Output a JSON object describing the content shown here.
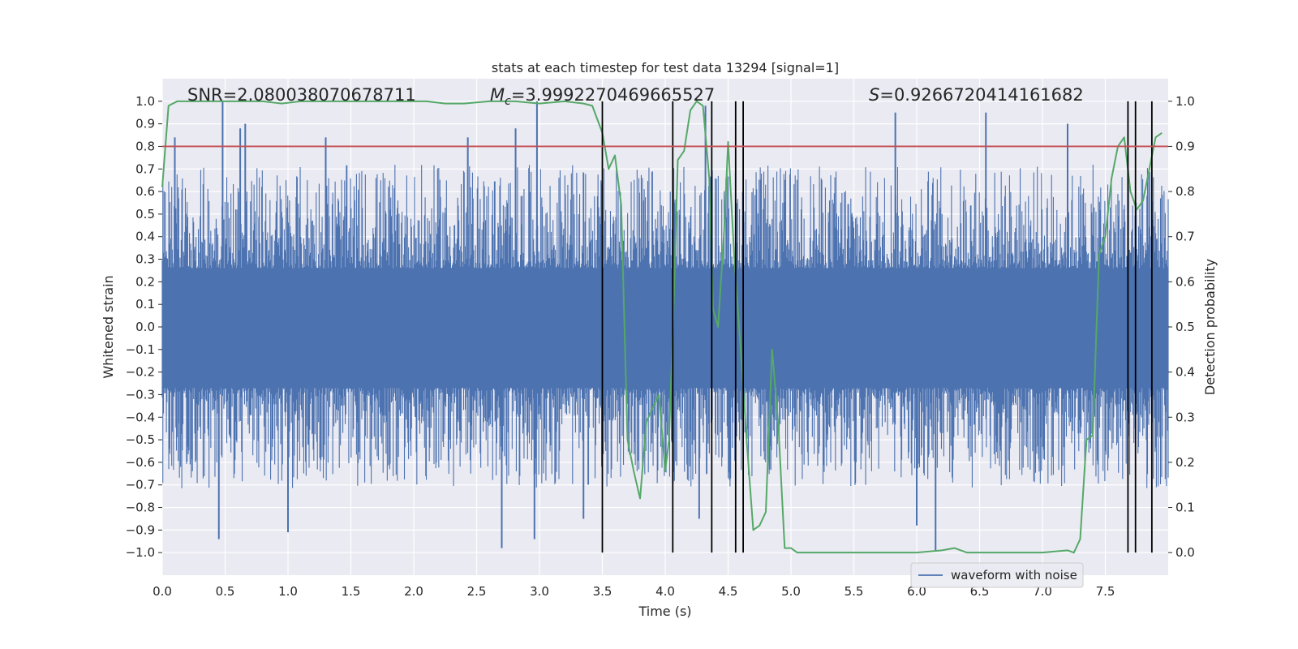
{
  "chart_data": {
    "type": "line",
    "title": "stats at each timestep for test data 13294 [signal=1]",
    "xlabel": "Time (s)",
    "ylabel": "Whitened strain",
    "y2label": "Detection probability",
    "xlim": [
      0.0,
      8.0
    ],
    "ylim": [
      -1.1,
      1.1
    ],
    "y2lim": [
      -0.05,
      1.05
    ],
    "xticks": [
      "0.0",
      "0.5",
      "1.0",
      "1.5",
      "2.0",
      "2.5",
      "3.0",
      "3.5",
      "4.0",
      "4.5",
      "5.0",
      "5.5",
      "6.0",
      "6.5",
      "7.0",
      "7.5"
    ],
    "yticks": [
      "1.0",
      "0.9",
      "0.8",
      "0.7",
      "0.6",
      "0.5",
      "0.4",
      "0.3",
      "0.2",
      "0.1",
      "0.0",
      "−0.1",
      "−0.2",
      "−0.3",
      "−0.4",
      "−0.5",
      "−0.6",
      "−0.7",
      "−0.8",
      "−0.9",
      "−1.0"
    ],
    "y2ticks": [
      "1.0",
      "0.9",
      "0.8",
      "0.7",
      "0.6",
      "0.5",
      "0.4",
      "0.3",
      "0.2",
      "0.1",
      "0.0"
    ],
    "annotations": {
      "snr": "SNR=2.080038070678711",
      "mc_symbol": "M",
      "mc_sub": "c",
      "mc_value": "=3.9992270469665527",
      "s_symbol": "S",
      "s_value": "=0.9266720414161682"
    },
    "threshold": {
      "axis": "right",
      "value": 0.9,
      "color": "#c44e52"
    },
    "vertical_lines": [
      3.5,
      4.06,
      4.37,
      4.56,
      4.62,
      7.68,
      7.74,
      7.87
    ],
    "series": [
      {
        "name": "waveform with noise",
        "axis": "left",
        "color": "#4c72b0",
        "x_range": [
          0.0,
          8.0
        ],
        "core_band": [
          -0.27,
          0.26
        ],
        "typical_max": 0.6,
        "typical_min": -0.6,
        "peaks": [
          {
            "x": 0.48,
            "y": 1.0
          },
          {
            "x": 0.62,
            "y": 0.88
          },
          {
            "x": 0.66,
            "y": 0.9
          },
          {
            "x": 2.98,
            "y": 1.0
          },
          {
            "x": 4.32,
            "y": 0.98
          },
          {
            "x": 0.1,
            "y": 0.84
          },
          {
            "x": 1.3,
            "y": 0.84
          },
          {
            "x": 2.43,
            "y": 0.84
          },
          {
            "x": 2.81,
            "y": 0.88
          },
          {
            "x": 5.83,
            "y": 0.95
          },
          {
            "x": 6.55,
            "y": 0.95
          },
          {
            "x": 7.2,
            "y": 0.9
          }
        ],
        "troughs": [
          {
            "x": 0.45,
            "y": -0.94
          },
          {
            "x": 2.7,
            "y": -0.98
          },
          {
            "x": 2.96,
            "y": -0.94
          },
          {
            "x": 1.0,
            "y": -0.91
          },
          {
            "x": 6.15,
            "y": -0.99
          },
          {
            "x": 6.0,
            "y": -0.88
          },
          {
            "x": 3.35,
            "y": -0.85
          },
          {
            "x": 4.27,
            "y": -0.85
          }
        ]
      },
      {
        "name": "detection probability",
        "axis": "right",
        "color": "#55a868",
        "x": [
          0.0,
          0.05,
          0.12,
          0.2,
          0.4,
          0.6,
          0.8,
          0.95,
          1.1,
          1.3,
          1.5,
          1.7,
          1.9,
          2.1,
          2.25,
          2.4,
          2.6,
          2.8,
          3.0,
          3.2,
          3.35,
          3.42,
          3.5,
          3.55,
          3.6,
          3.65,
          3.7,
          3.75,
          3.8,
          3.85,
          3.9,
          3.95,
          4.0,
          4.03,
          4.06,
          4.1,
          4.15,
          4.2,
          4.25,
          4.3,
          4.35,
          4.38,
          4.42,
          4.47,
          4.5,
          4.55,
          4.6,
          4.65,
          4.7,
          4.75,
          4.8,
          4.85,
          4.9,
          4.95,
          5.0,
          5.05,
          5.2,
          5.5,
          5.8,
          6.0,
          6.2,
          6.3,
          6.4,
          6.6,
          7.0,
          7.2,
          7.25,
          7.3,
          7.35,
          7.4,
          7.45,
          7.5,
          7.55,
          7.6,
          7.65,
          7.7,
          7.75,
          7.8,
          7.85,
          7.9,
          7.95
        ],
        "values": [
          0.81,
          0.99,
          1.0,
          1.0,
          1.0,
          1.0,
          1.0,
          0.995,
          1.0,
          1.0,
          1.0,
          1.0,
          1.0,
          1.0,
          0.995,
          0.995,
          1.0,
          1.0,
          0.995,
          1.0,
          0.995,
          0.99,
          0.93,
          0.85,
          0.88,
          0.77,
          0.25,
          0.18,
          0.12,
          0.29,
          0.32,
          0.35,
          0.18,
          0.25,
          0.48,
          0.87,
          0.89,
          0.98,
          1.0,
          0.99,
          0.83,
          0.54,
          0.5,
          0.72,
          0.91,
          0.65,
          0.45,
          0.24,
          0.05,
          0.06,
          0.09,
          0.45,
          0.28,
          0.01,
          0.01,
          0.0,
          0.0,
          0.0,
          0.0,
          0.0,
          0.005,
          0.01,
          0.0,
          0.0,
          0.0,
          0.005,
          0.0,
          0.03,
          0.25,
          0.26,
          0.66,
          0.7,
          0.83,
          0.9,
          0.92,
          0.8,
          0.76,
          0.78,
          0.85,
          0.92,
          0.93
        ]
      }
    ],
    "legend": {
      "label": "waveform with noise",
      "placement": "lower-right"
    }
  }
}
